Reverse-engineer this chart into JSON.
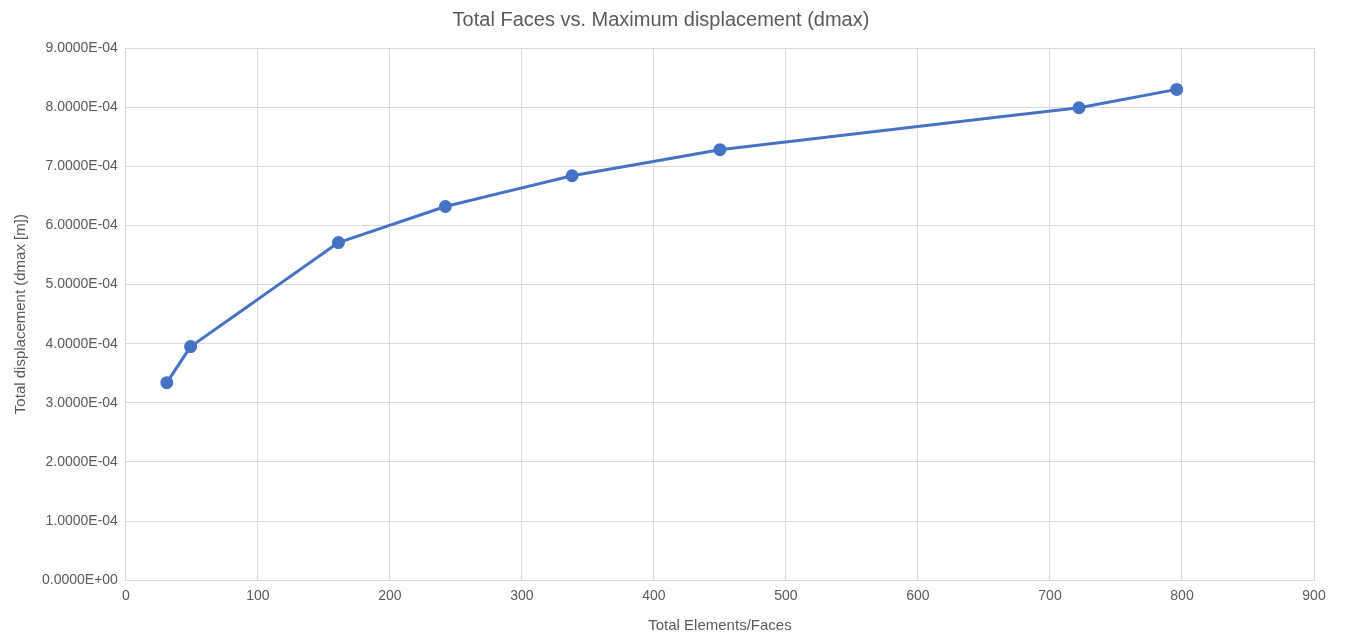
{
  "chart_data": {
    "type": "line",
    "title": "Total Faces vs. Maximum displacement (dmax)",
    "xlabel": "Total Elements/Faces",
    "ylabel": "Total displacement (dmax [m])",
    "x": [
      31,
      49,
      161,
      242,
      338,
      450,
      722,
      796
    ],
    "series": [
      {
        "color": "#4472c4",
        "values": [
          0.000334,
          0.000395,
          0.000571,
          0.000632,
          0.000684,
          0.000728,
          0.000799,
          0.00083
        ]
      }
    ],
    "xlim": [
      0,
      900
    ],
    "xticks": [
      0,
      100,
      200,
      300,
      400,
      500,
      600,
      700,
      800,
      900
    ],
    "ylim": [
      0,
      0.0009
    ],
    "yticks": [
      {
        "value": 0,
        "label": "0.0000E+00"
      },
      {
        "value": 0.0001,
        "label": "1.0000E-04"
      },
      {
        "value": 0.0002,
        "label": "2.0000E-04"
      },
      {
        "value": 0.0003,
        "label": "3.0000E-04"
      },
      {
        "value": 0.0004,
        "label": "4.0000E-04"
      },
      {
        "value": 0.0005,
        "label": "5.0000E-04"
      },
      {
        "value": 0.0006,
        "label": "6.0000E-04"
      },
      {
        "value": 0.0007,
        "label": "7.0000E-04"
      },
      {
        "value": 0.0008,
        "label": "8.0000E-04"
      },
      {
        "value": 0.0009,
        "label": "9.0000E-04"
      }
    ],
    "grid": true,
    "legend": false,
    "marker": "circle",
    "line_style": "solid"
  }
}
